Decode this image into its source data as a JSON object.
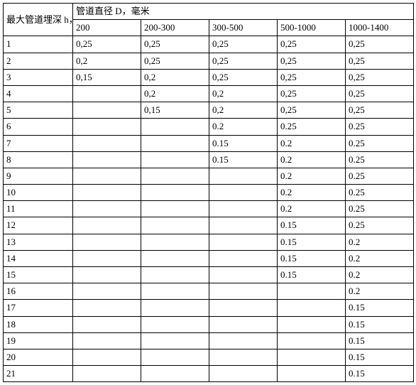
{
  "table": {
    "row_header_title": "最大管道埋深 h，米",
    "col_header_title": "管道直径 D，毫米",
    "columns": [
      "200",
      "200-300",
      "300-500",
      "500-1000",
      "1000-1400"
    ],
    "rows": [
      {
        "h": "1",
        "v": [
          "0,25",
          "0,25",
          "0,25",
          "0,25",
          "0,25"
        ]
      },
      {
        "h": "2",
        "v": [
          "0,2",
          "0,25",
          "0,25",
          "0,25",
          "0,25"
        ]
      },
      {
        "h": "3",
        "v": [
          "0,15",
          "0,2",
          "0,25",
          "0,25",
          "0,25"
        ]
      },
      {
        "h": "4",
        "v": [
          "",
          "0,2",
          "0,2",
          "0,25",
          "0,25"
        ]
      },
      {
        "h": "5",
        "v": [
          "",
          "0,15",
          "0,2",
          "0,25",
          "0,25"
        ]
      },
      {
        "h": "6",
        "v": [
          "",
          "",
          "0.2",
          "0.25",
          "0.25"
        ]
      },
      {
        "h": "7",
        "v": [
          "",
          "",
          "0.15",
          "0.2",
          "0.25"
        ]
      },
      {
        "h": "8",
        "v": [
          "",
          "",
          "0.15",
          "0.2",
          "0.25"
        ]
      },
      {
        "h": "9",
        "v": [
          "",
          "",
          "",
          "0.2",
          "0.25"
        ]
      },
      {
        "h": "10",
        "v": [
          "",
          "",
          "",
          "0.2",
          "0.25"
        ]
      },
      {
        "h": "11",
        "v": [
          "",
          "",
          "",
          "0.2",
          "0.25"
        ]
      },
      {
        "h": "12",
        "v": [
          "",
          "",
          "",
          "0.15",
          "0.25"
        ]
      },
      {
        "h": "13",
        "v": [
          "",
          "",
          "",
          "0.15",
          "0.2"
        ]
      },
      {
        "h": "14",
        "v": [
          "",
          "",
          "",
          "0.15",
          "0.2"
        ]
      },
      {
        "h": "15",
        "v": [
          "",
          "",
          "",
          "0.15",
          "0.2"
        ]
      },
      {
        "h": "16",
        "v": [
          "",
          "",
          "",
          "",
          "0.2"
        ]
      },
      {
        "h": "17",
        "v": [
          "",
          "",
          "",
          "",
          "0.15"
        ]
      },
      {
        "h": "18",
        "v": [
          "",
          "",
          "",
          "",
          "0.15"
        ]
      },
      {
        "h": "19",
        "v": [
          "",
          "",
          "",
          "",
          "0.15"
        ]
      },
      {
        "h": "20",
        "v": [
          "",
          "",
          "",
          "",
          "0.15"
        ]
      },
      {
        "h": "21",
        "v": [
          "",
          "",
          "",
          "",
          "0.15"
        ]
      }
    ],
    "border_color": "#000000",
    "background_color": "#ffffff",
    "font_size_pt": 10
  }
}
